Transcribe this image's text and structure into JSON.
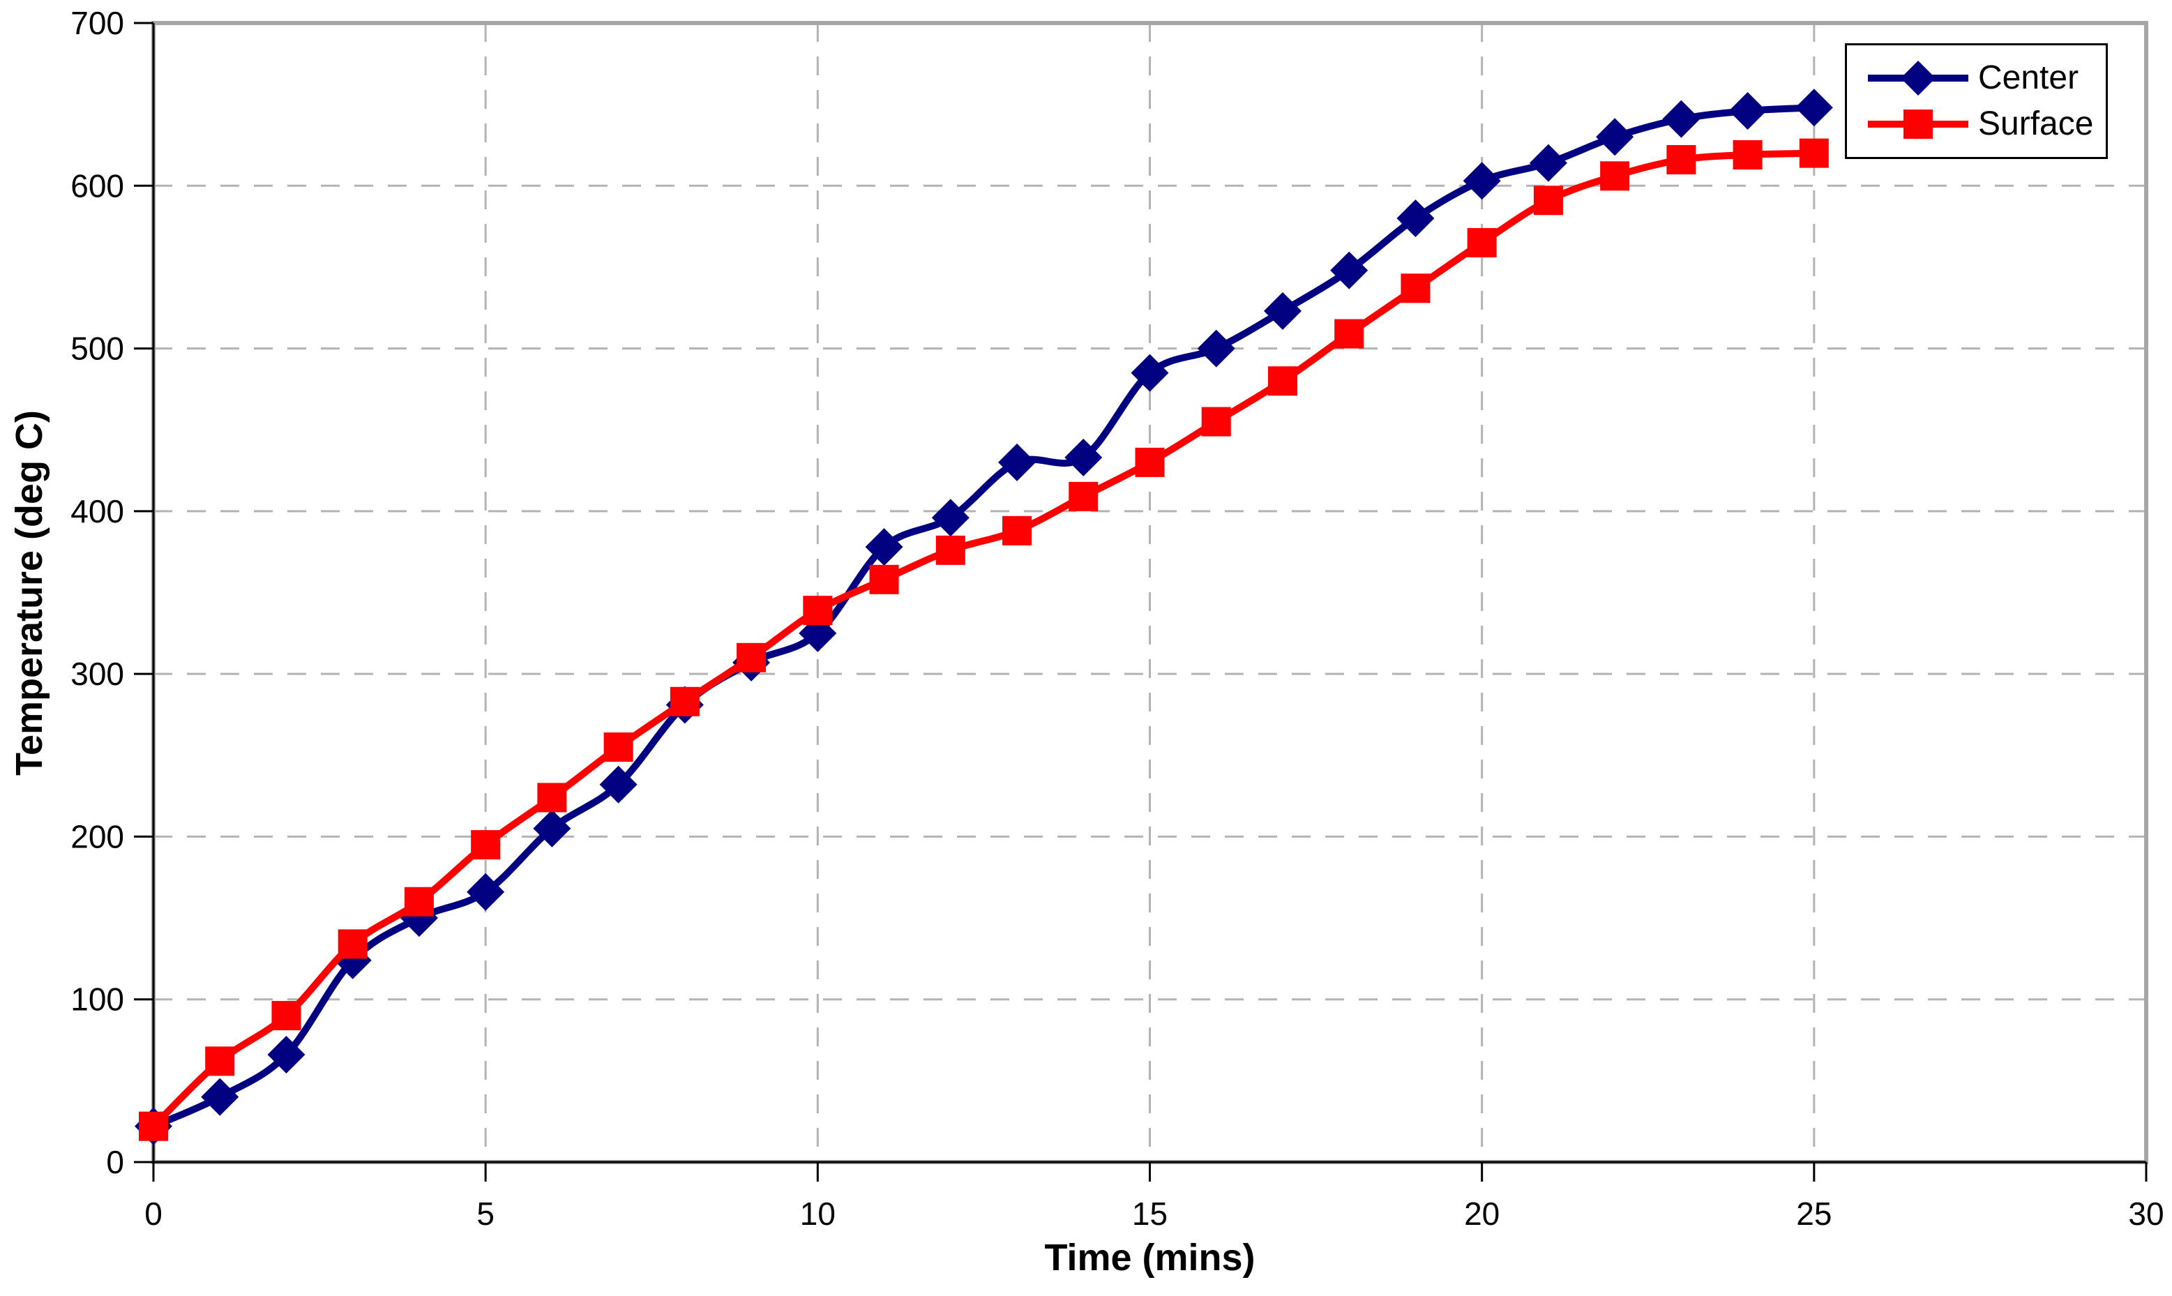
{
  "chart_data": {
    "type": "line",
    "title": "",
    "xlabel": "Time (mins)",
    "ylabel": "Temperature (deg C)",
    "xlim": [
      0,
      30
    ],
    "ylim": [
      0,
      700
    ],
    "x_ticks": [
      0,
      5,
      10,
      15,
      20,
      25,
      30
    ],
    "y_ticks": [
      0,
      100,
      200,
      300,
      400,
      500,
      600,
      700
    ],
    "grid": true,
    "grid_style": "dashed",
    "grid_color": "#b3b3b3",
    "axis_color": "#000000",
    "plot_border_color": "#a6a6a6",
    "legend_position": "top-right",
    "x": [
      0,
      1,
      2,
      3,
      4,
      5,
      6,
      7,
      8,
      9,
      10,
      11,
      12,
      13,
      14,
      15,
      16,
      17,
      18,
      19,
      20,
      21,
      22,
      23,
      24,
      25
    ],
    "series": [
      {
        "name": "Center",
        "color": "#000080",
        "marker": "diamond",
        "values": [
          22,
          40,
          66,
          124,
          150,
          166,
          205,
          232,
          281,
          307,
          325,
          378,
          396,
          430,
          433,
          485,
          500,
          523,
          548,
          580,
          603,
          614,
          630,
          641,
          646,
          648
        ]
      },
      {
        "name": "Surface",
        "color": "#ff0000",
        "marker": "square",
        "values": [
          22,
          62,
          90,
          134,
          160,
          195,
          224,
          255,
          283,
          310,
          339,
          358,
          376,
          388,
          409,
          430,
          455,
          480,
          509,
          537,
          565,
          591,
          606,
          616,
          619,
          620
        ]
      }
    ]
  }
}
